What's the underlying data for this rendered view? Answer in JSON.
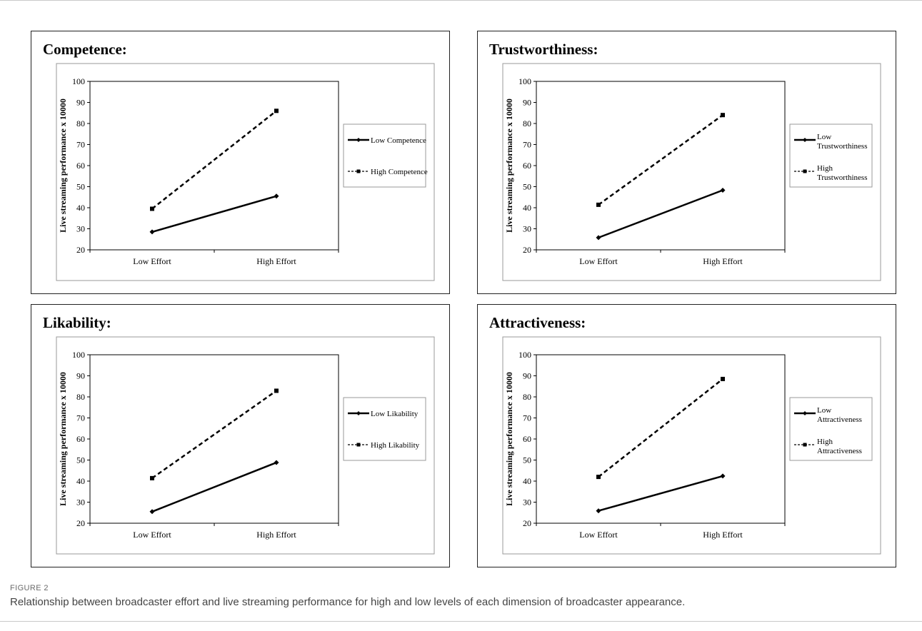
{
  "figure": {
    "label": "FIGURE 2",
    "caption": "Relationship between broadcaster effort and live streaming performance for high and low levels of each dimension of broadcaster appearance."
  },
  "chart_data": [
    {
      "type": "line",
      "title": "Competence:",
      "ylabel": "Live streaming performance   x 10000",
      "categories": [
        "Low Effort",
        "High Effort"
      ],
      "ylim": [
        20,
        100
      ],
      "yticks": [
        "20",
        "30",
        "40",
        "50",
        "60",
        "70",
        "80",
        "90",
        "100"
      ],
      "series": [
        {
          "name": "Low Competence",
          "values": [
            28.5,
            45.5
          ],
          "style": "solid",
          "marker": "diamond"
        },
        {
          "name": "High Competence",
          "values": [
            39.5,
            86
          ],
          "style": "dashed",
          "marker": "square"
        }
      ],
      "legend_position": "right"
    },
    {
      "type": "line",
      "title": "Trustworthiness:",
      "ylabel": "Live streaming performance   x 10000",
      "categories": [
        "Low Effort",
        "High Effort"
      ],
      "ylim": [
        20,
        100
      ],
      "yticks": [
        "20",
        "30",
        "40",
        "50",
        "60",
        "70",
        "80",
        "90",
        "100"
      ],
      "series": [
        {
          "name": "Low Trustworthiness",
          "values": [
            25.8,
            48.3
          ],
          "style": "solid",
          "marker": "diamond"
        },
        {
          "name": "High Trustworthiness",
          "values": [
            41.4,
            84
          ],
          "style": "dashed",
          "marker": "square"
        }
      ],
      "legend_position": "right"
    },
    {
      "type": "line",
      "title": "Likability:",
      "ylabel": "Live streaming performance   x 10000",
      "categories": [
        "Low Effort",
        "High Effort"
      ],
      "ylim": [
        20,
        100
      ],
      "yticks": [
        "20",
        "30",
        "40",
        "50",
        "60",
        "70",
        "80",
        "90",
        "100"
      ],
      "series": [
        {
          "name": "Low Likability",
          "values": [
            25.5,
            48.8
          ],
          "style": "solid",
          "marker": "diamond"
        },
        {
          "name": "High Likability",
          "values": [
            41.4,
            82.9
          ],
          "style": "dashed",
          "marker": "square"
        }
      ],
      "legend_position": "right"
    },
    {
      "type": "line",
      "title": "Attractiveness:",
      "ylabel": "Live streaming performance   x 10000",
      "categories": [
        "Low Effort",
        "High Effort"
      ],
      "ylim": [
        20,
        100
      ],
      "yticks": [
        "20",
        "30",
        "40",
        "50",
        "60",
        "70",
        "80",
        "90",
        "100"
      ],
      "series": [
        {
          "name": "Low Attractiveness",
          "values": [
            25.9,
            42.4
          ],
          "style": "solid",
          "marker": "diamond"
        },
        {
          "name": "High Attractiveness",
          "values": [
            42,
            88.5
          ],
          "style": "dashed",
          "marker": "square"
        }
      ],
      "legend_position": "right"
    }
  ]
}
